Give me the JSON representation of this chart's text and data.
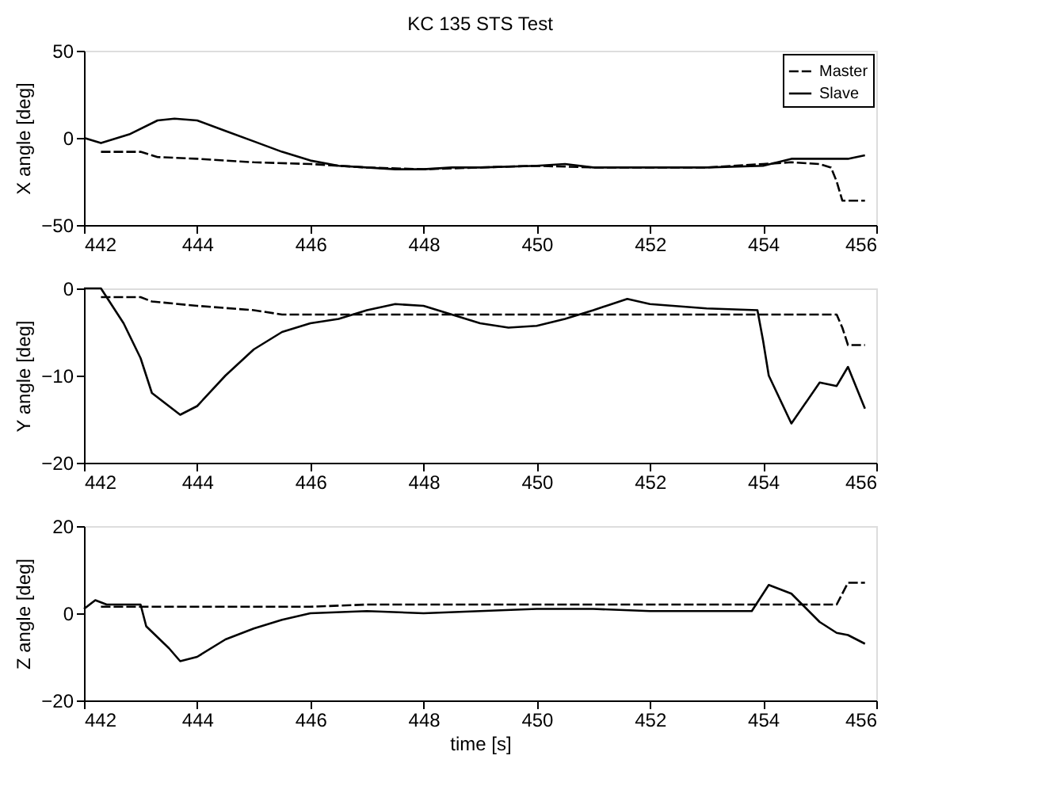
{
  "chart_data": [
    {
      "type": "line",
      "title": "KC 135 STS Test",
      "ylabel": "X angle [deg]",
      "xlim": [
        442,
        456
      ],
      "xticks": [
        442,
        444,
        446,
        448,
        450,
        452,
        454,
        456
      ],
      "ylim": [
        -50,
        50
      ],
      "yticks": [
        -50,
        0,
        50
      ],
      "legend": "top right",
      "grid": false,
      "series": [
        {
          "name": "Master",
          "color": "#000000",
          "line_style": "dashed",
          "x": [
            442.3,
            443,
            443.3,
            444,
            445,
            446,
            447,
            448,
            449,
            450,
            451,
            452,
            453,
            454,
            454.5,
            455,
            455.2,
            455.3,
            455.4,
            455.8
          ],
          "values": [
            -8,
            -8,
            -11,
            -12,
            -14,
            -15,
            -17,
            -18,
            -17,
            -16,
            -17,
            -17,
            -17,
            -15,
            -14,
            -15,
            -17,
            -25,
            -36,
            -36
          ]
        },
        {
          "name": "Slave",
          "color": "#000000",
          "line_style": "solid",
          "x": [
            442,
            442.3,
            442.8,
            443.3,
            443.6,
            444,
            444.5,
            445,
            445.5,
            446,
            446.5,
            447,
            447.5,
            448,
            448.5,
            449,
            450,
            450.5,
            451,
            452,
            453,
            454,
            454.5,
            455,
            455.5,
            455.8
          ],
          "values": [
            0,
            -3,
            2,
            10,
            11,
            10,
            4,
            -2,
            -8,
            -13,
            -16,
            -17,
            -18,
            -18,
            -17,
            -17,
            -16,
            -15,
            -17,
            -17,
            -17,
            -16,
            -12,
            -12,
            -12,
            -10
          ]
        }
      ]
    },
    {
      "type": "line",
      "ylabel": "Y angle [deg]",
      "xlim": [
        442,
        456
      ],
      "xticks": [
        442,
        444,
        446,
        448,
        450,
        452,
        454,
        456
      ],
      "ylim": [
        -20,
        0
      ],
      "yticks": [
        -20,
        -10,
        0
      ],
      "grid": false,
      "series": [
        {
          "name": "Master",
          "color": "#000000",
          "line_style": "dashed",
          "x": [
            442.3,
            443,
            443.2,
            444,
            445,
            445.5,
            448,
            450,
            452,
            454,
            455.3,
            455.4,
            455.5,
            455.8
          ],
          "values": [
            -1,
            -1,
            -1.5,
            -2,
            -2.5,
            -3,
            -3,
            -3,
            -3,
            -3,
            -3,
            -4.5,
            -6.5,
            -6.5
          ]
        },
        {
          "name": "Slave",
          "color": "#000000",
          "line_style": "solid",
          "x": [
            442,
            442.3,
            442.7,
            443,
            443.2,
            443.5,
            443.7,
            444,
            444.5,
            445,
            445.5,
            446,
            446.5,
            447,
            447.5,
            448,
            448.5,
            449,
            449.5,
            450,
            450.5,
            451,
            451.6,
            452,
            453,
            453.9,
            454,
            454.1,
            454.5,
            455,
            455.3,
            455.5,
            455.8
          ],
          "values": [
            0,
            0,
            -4,
            -8,
            -12,
            -13.5,
            -14.5,
            -13.5,
            -10,
            -7,
            -5,
            -4,
            -3.5,
            -2.5,
            -1.8,
            -2,
            -3,
            -4,
            -4.5,
            -4.3,
            -3.5,
            -2.5,
            -1.2,
            -1.8,
            -2.3,
            -2.5,
            -6,
            -10,
            -15.5,
            -10.8,
            -11.2,
            -9,
            -13.8
          ]
        }
      ]
    },
    {
      "type": "line",
      "ylabel": "Z angle [deg]",
      "xlabel": "time [s]",
      "xlim": [
        442,
        456
      ],
      "xticks": [
        442,
        444,
        446,
        448,
        450,
        452,
        454,
        456
      ],
      "ylim": [
        -20,
        20
      ],
      "yticks": [
        -20,
        0,
        20
      ],
      "grid": false,
      "series": [
        {
          "name": "Master",
          "color": "#000000",
          "line_style": "dashed",
          "x": [
            442.3,
            443,
            444,
            445,
            446,
            447,
            448,
            449,
            450,
            451,
            452,
            453,
            454,
            455,
            455.3,
            455.5,
            455.8
          ],
          "values": [
            1.5,
            1.5,
            1.5,
            1.5,
            1.5,
            2,
            2,
            2,
            2,
            2,
            2,
            2,
            2,
            2,
            2,
            7,
            7
          ]
        },
        {
          "name": "Slave",
          "color": "#000000",
          "line_style": "solid",
          "x": [
            442,
            442.2,
            442.4,
            443,
            443.1,
            443.5,
            443.7,
            444,
            444.5,
            445,
            445.5,
            446,
            447,
            448,
            449,
            450,
            451,
            452,
            453,
            453.8,
            454.1,
            454.5,
            455,
            455.3,
            455.5,
            455.8
          ],
          "values": [
            1,
            3,
            2,
            2,
            -3,
            -8,
            -11,
            -10,
            -6,
            -3.5,
            -1.5,
            0,
            0.5,
            0,
            0.5,
            1,
            1,
            0.5,
            0.5,
            0.5,
            6.5,
            4.5,
            -2,
            -4.5,
            -5,
            -7
          ]
        }
      ]
    }
  ]
}
